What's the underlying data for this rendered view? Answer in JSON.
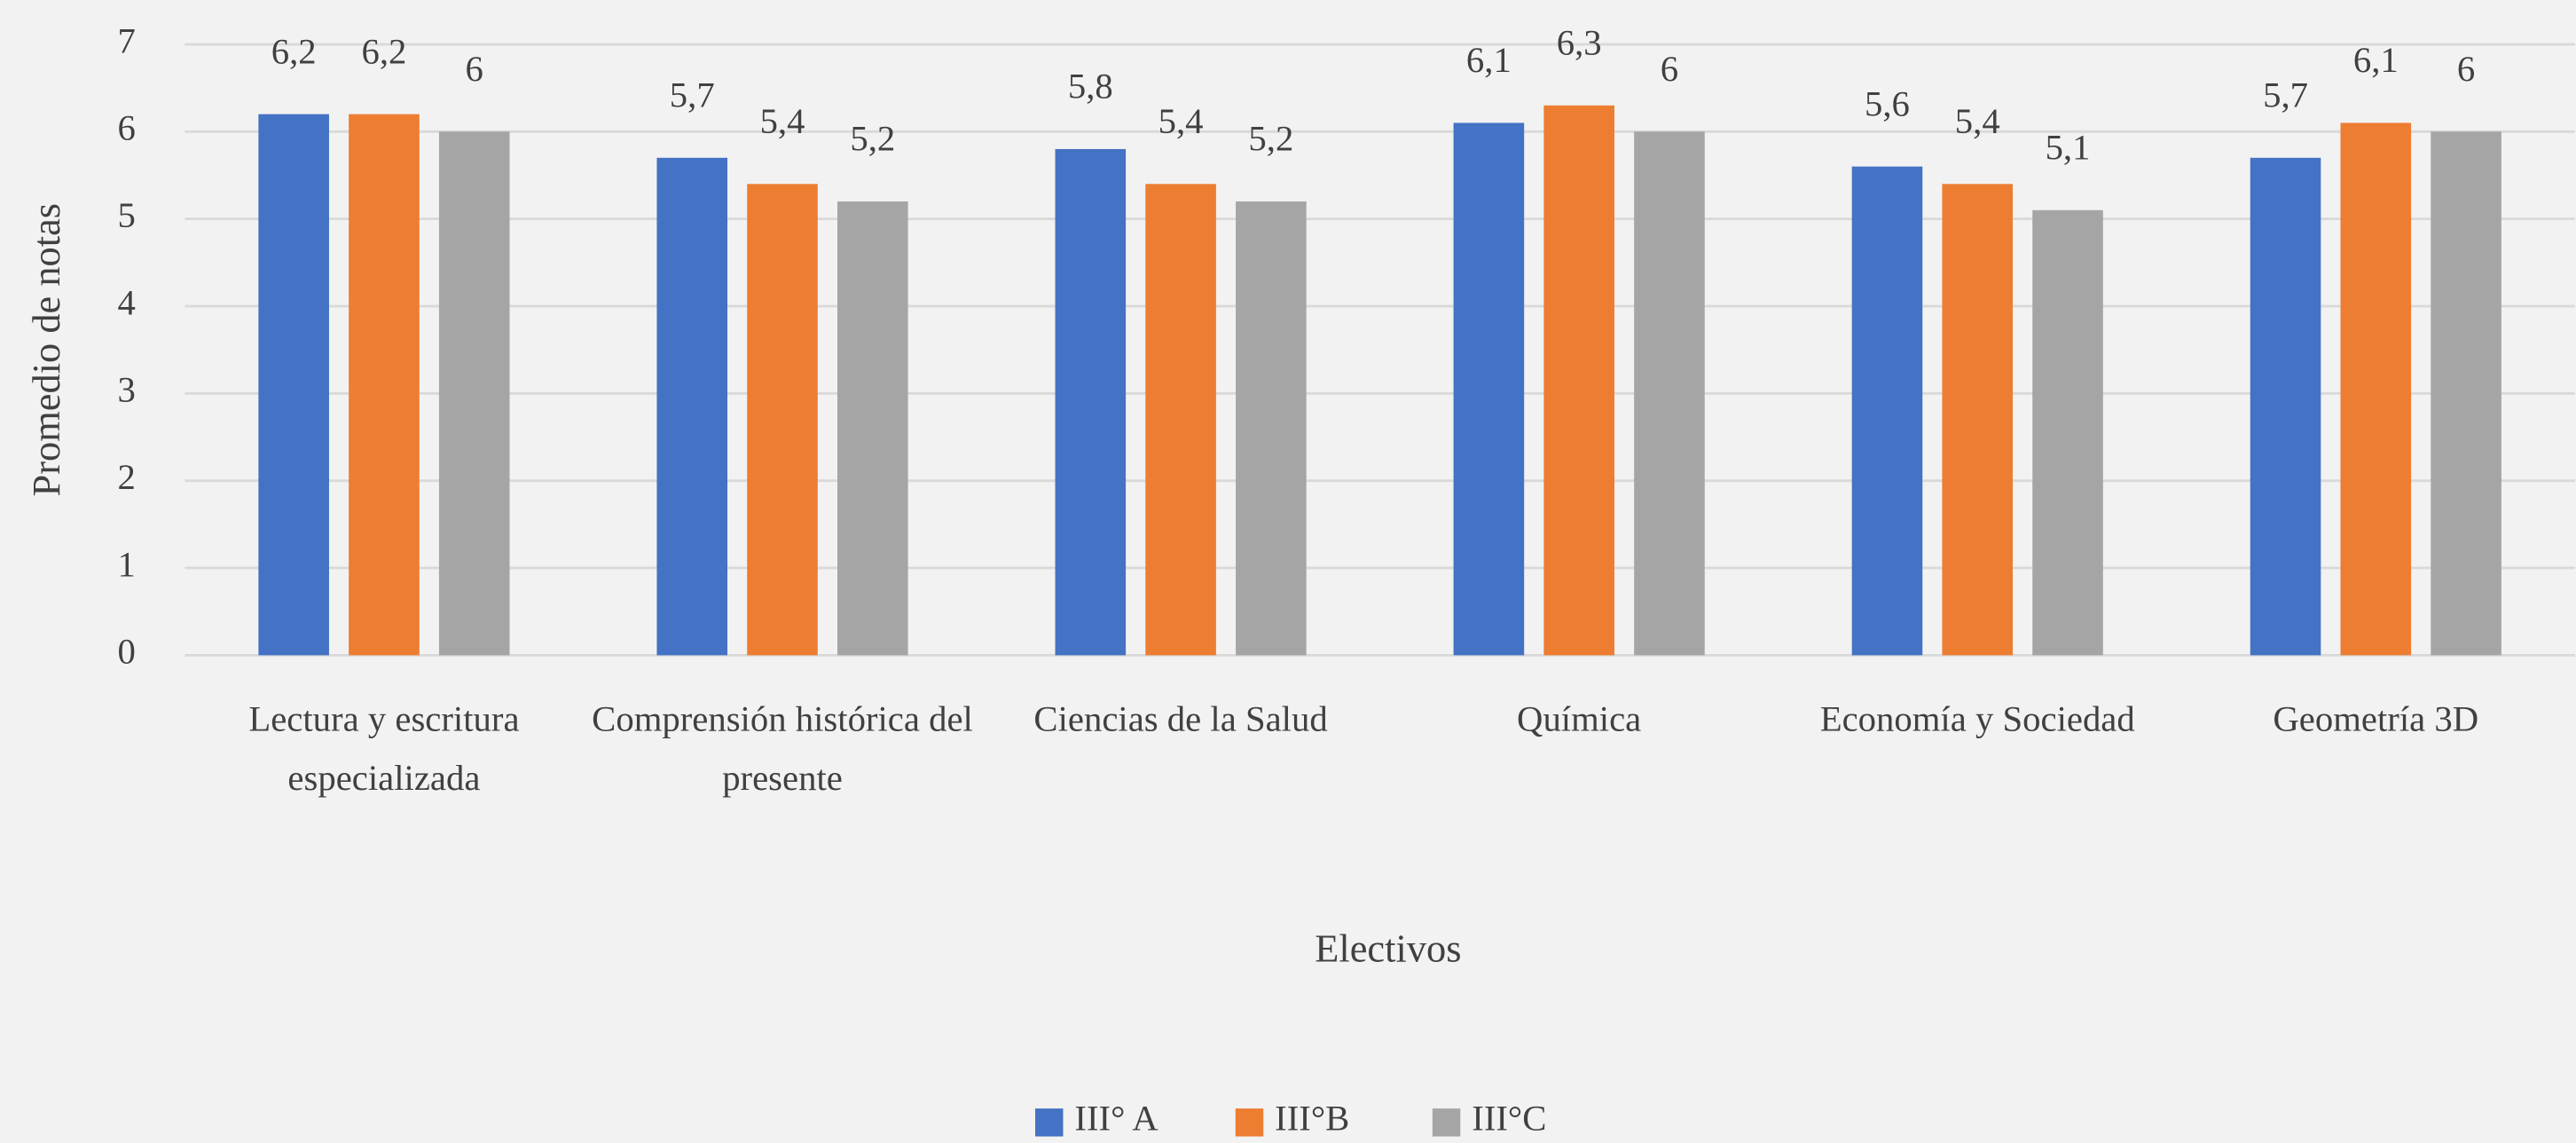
{
  "chart_data": {
    "type": "bar",
    "x_label": "Electivos",
    "y_label": "Promedio de notas",
    "categories": [
      "Lectura y escritura especializada",
      "Comprensión histórica del presente",
      "Ciencias de la Salud",
      "Química",
      "Economía y Sociedad",
      "Geometría 3D"
    ],
    "series": [
      {
        "name": "III° A",
        "color": "#4472c4",
        "values": [
          6.2,
          5.7,
          5.8,
          6.1,
          5.6,
          5.7
        ],
        "value_labels": [
          "6,2",
          "5,7",
          "5,8",
          "6,1",
          "5,6",
          "5,7"
        ]
      },
      {
        "name": "III°B",
        "color": "#ed7d31",
        "values": [
          6.2,
          5.4,
          5.4,
          6.3,
          5.4,
          6.1
        ],
        "value_labels": [
          "6,2",
          "5,4",
          "5,4",
          "6,3",
          "5,4",
          "6,1"
        ]
      },
      {
        "name": "III°C",
        "color": "#a5a5a5",
        "values": [
          6,
          5.2,
          5.2,
          6,
          5.1,
          6
        ],
        "value_labels": [
          "6",
          "5,2",
          "5,2",
          "6",
          "5,1",
          "6"
        ]
      }
    ],
    "ylim": [
      0,
      7
    ],
    "yticks": [
      0,
      1,
      2,
      3,
      4,
      5,
      6,
      7
    ],
    "grid": true,
    "legend": "bottom"
  }
}
